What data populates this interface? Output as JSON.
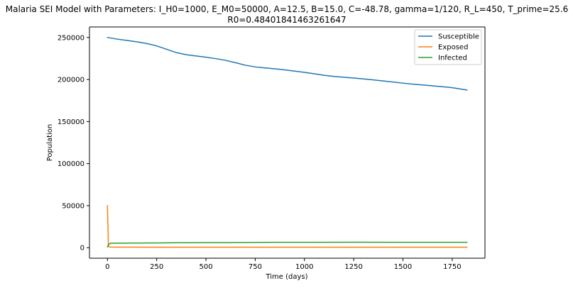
{
  "chart_data": {
    "type": "line",
    "title": "Malaria SEI Model with Parameters: I_H0=1000, E_M0=50000, A=12.5, B=15.0, C=-48.78, gamma=1/120, R_L=450, T_prime=25.6",
    "subtitle": "R0=0.48401841463261647",
    "xlabel": "Time (days)",
    "ylabel": "Population",
    "xlim": [
      -91.25,
      1916.25
    ],
    "ylim": [
      -12500,
      262500
    ],
    "xticks": [
      0,
      250,
      500,
      750,
      1000,
      1250,
      1500,
      1750
    ],
    "xtick_labels": [
      "0",
      "250",
      "500",
      "750",
      "1000",
      "1250",
      "1500",
      "1750"
    ],
    "yticks": [
      0,
      50000,
      100000,
      150000,
      200000,
      250000
    ],
    "ytick_labels": [
      "0",
      "50000",
      "100000",
      "150000",
      "200000",
      "250000"
    ],
    "grid": false,
    "legend_position": "top-right",
    "series": [
      {
        "name": "Susceptible",
        "color": "#1f77b4",
        "x": [
          0,
          50,
          100,
          150,
          200,
          250,
          300,
          350,
          400,
          450,
          500,
          550,
          600,
          650,
          700,
          750,
          800,
          850,
          900,
          950,
          1000,
          1050,
          1100,
          1150,
          1200,
          1250,
          1300,
          1350,
          1400,
          1450,
          1500,
          1550,
          1600,
          1650,
          1700,
          1750,
          1825
        ],
        "values": [
          250000,
          248000,
          246500,
          244800,
          242800,
          240000,
          236000,
          232000,
          229500,
          228000,
          226500,
          224800,
          222800,
          220000,
          217000,
          215000,
          213800,
          212700,
          211500,
          210000,
          208500,
          206800,
          205000,
          203700,
          202700,
          201800,
          200700,
          199500,
          198300,
          197000,
          195700,
          194500,
          193500,
          192500,
          191400,
          190300,
          187500
        ]
      },
      {
        "name": "Exposed",
        "color": "#ff7f0e",
        "x": [
          0,
          5,
          10,
          50,
          250,
          500,
          750,
          1000,
          1250,
          1500,
          1825
        ],
        "values": [
          50000,
          1500,
          800,
          700,
          600,
          600,
          600,
          600,
          600,
          600,
          600
        ]
      },
      {
        "name": "Infected",
        "color": "#2ca02c",
        "x": [
          0,
          5,
          15,
          50,
          250,
          400,
          500,
          600,
          750,
          1000,
          1250,
          1500,
          1825
        ],
        "values": [
          1000,
          3500,
          5300,
          5400,
          5600,
          6000,
          6100,
          6100,
          6300,
          6400,
          6500,
          6400,
          6400
        ]
      }
    ]
  }
}
